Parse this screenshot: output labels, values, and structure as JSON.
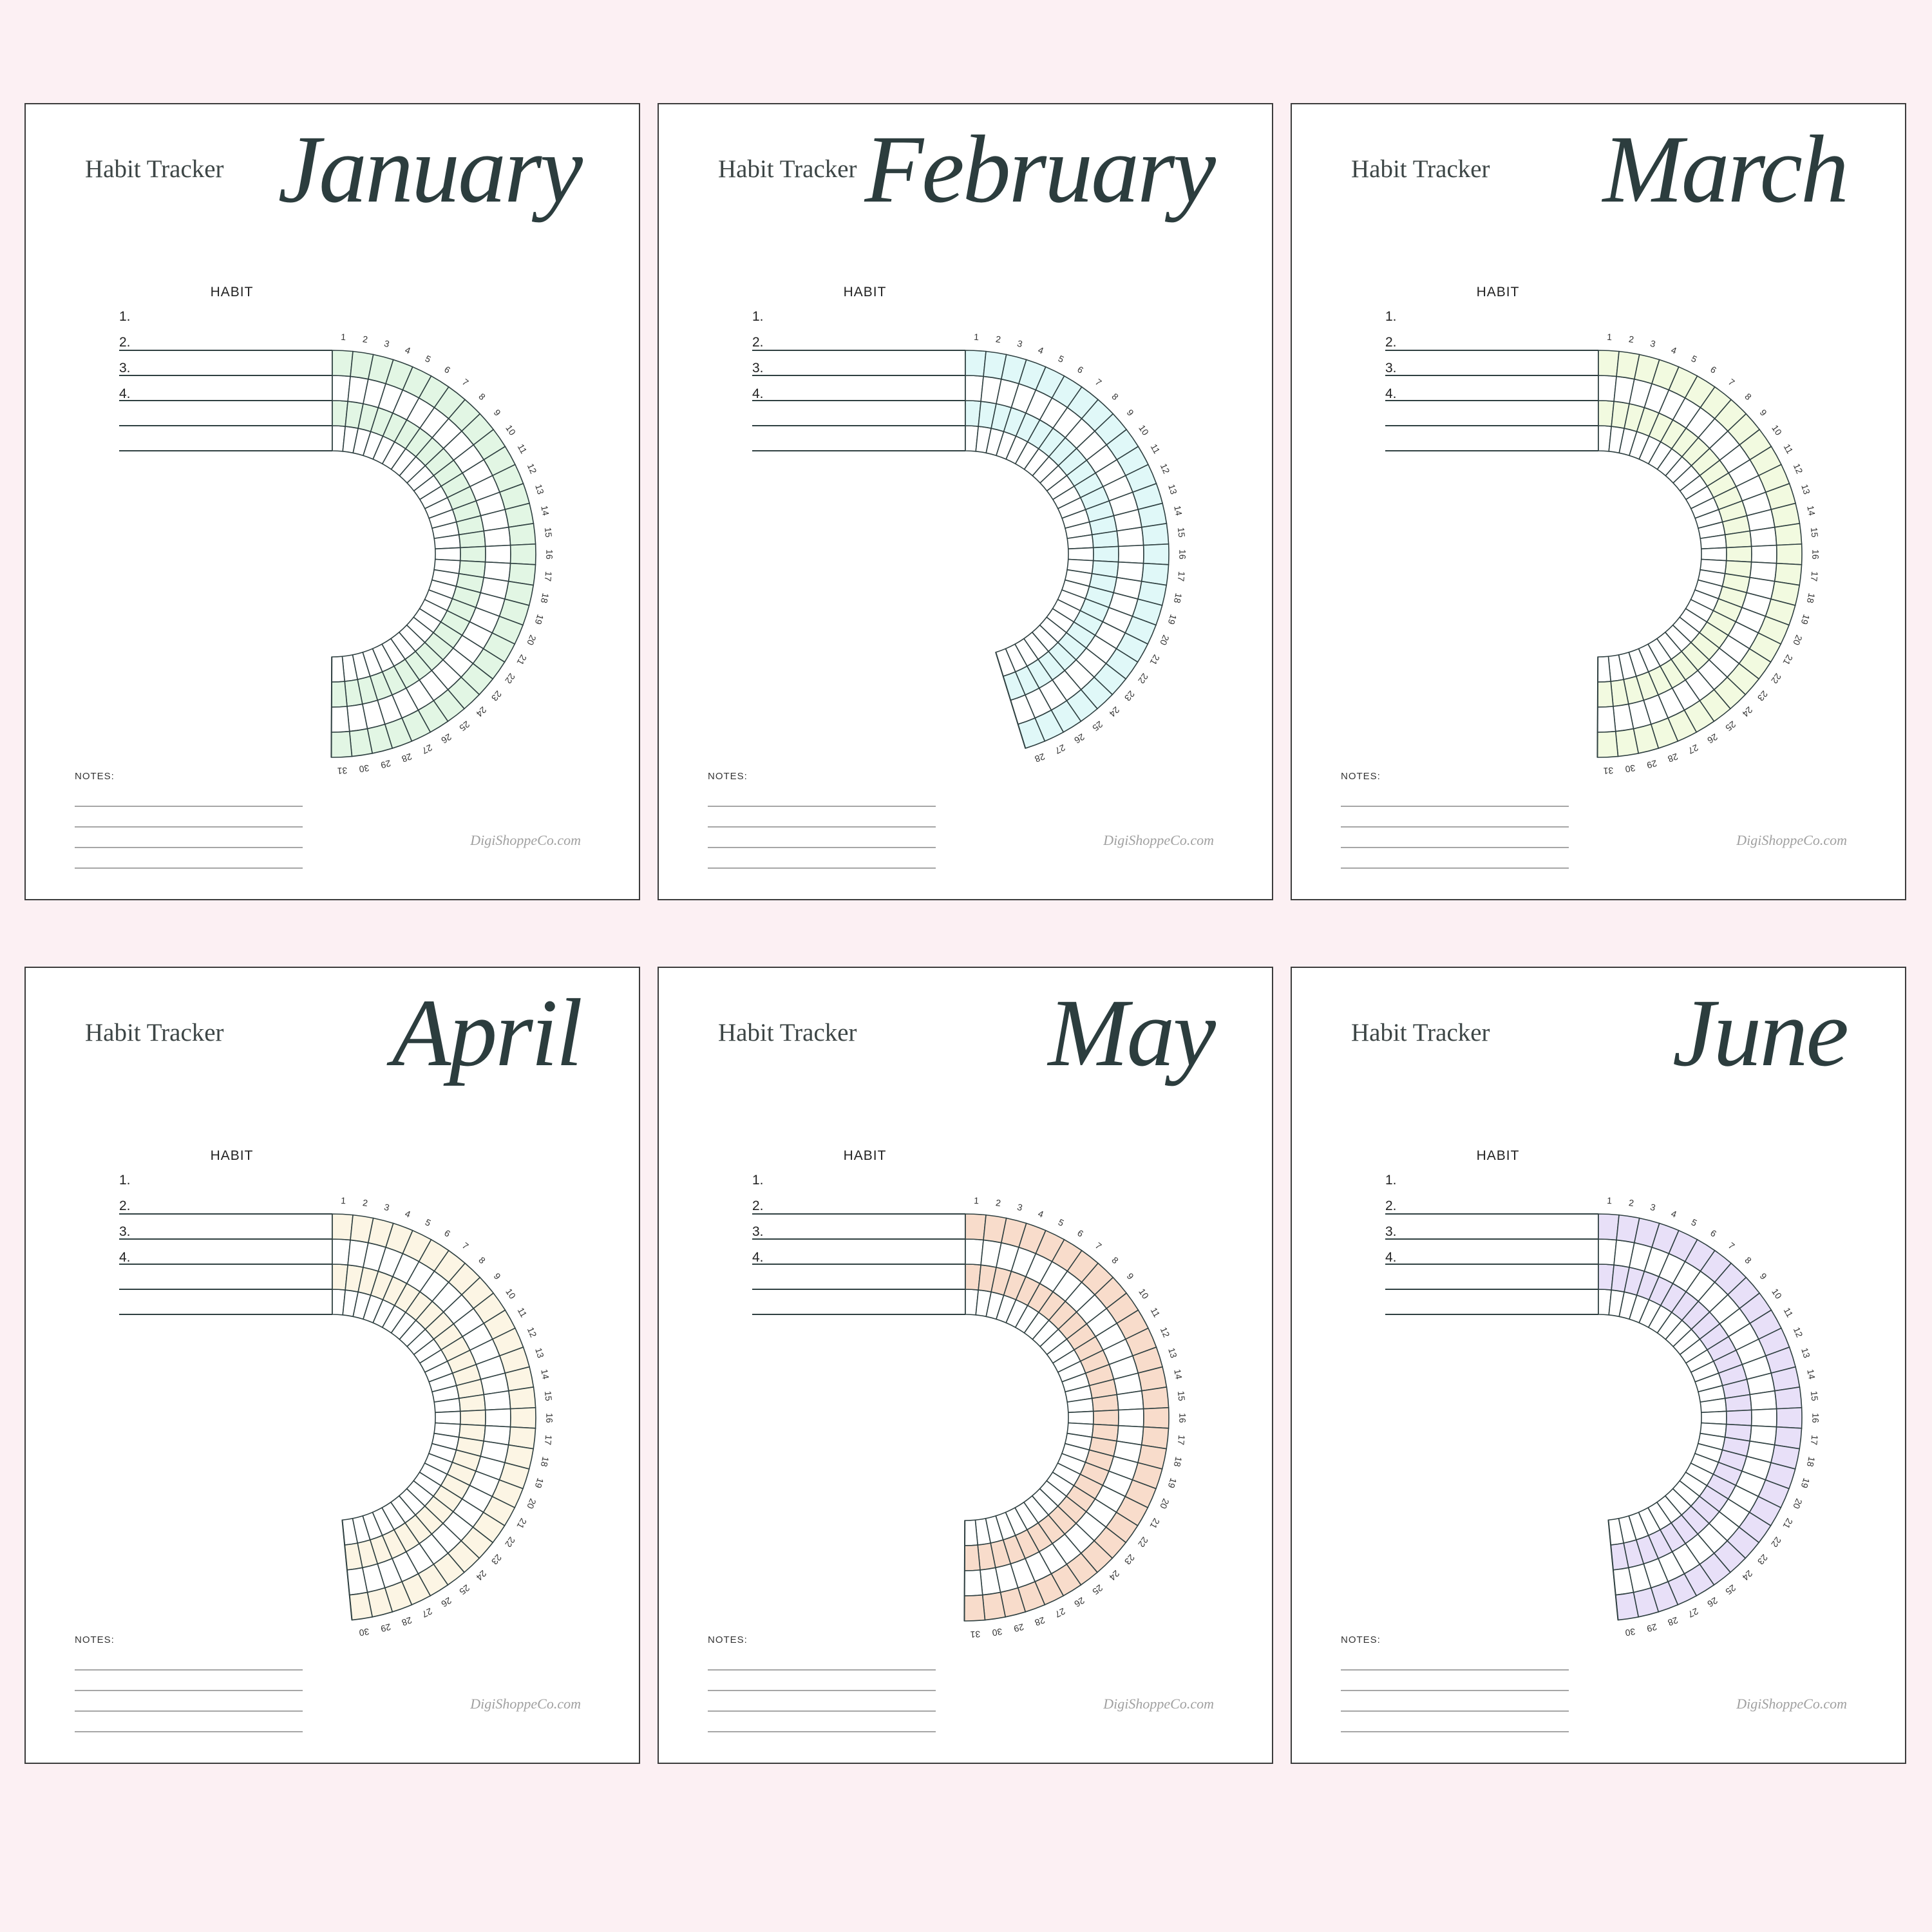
{
  "sheets": [
    {
      "title": "Habit Tracker",
      "month": "January",
      "days": 31,
      "accent": "#e2f6e4",
      "habit_header": "HABIT",
      "habits": [
        "1.",
        "2.",
        "3.",
        "4."
      ],
      "notes_label": "NOTES:",
      "watermark": "DigiShoppeCo.com"
    },
    {
      "title": "Habit Tracker",
      "month": "February",
      "days": 28,
      "accent": "#e0f8f8",
      "habit_header": "HABIT",
      "habits": [
        "1.",
        "2.",
        "3.",
        "4."
      ],
      "notes_label": "NOTES:",
      "watermark": "DigiShoppeCo.com"
    },
    {
      "title": "Habit Tracker",
      "month": "March",
      "days": 31,
      "accent": "#f2fae0",
      "habit_header": "HABIT",
      "habits": [
        "1.",
        "2.",
        "3.",
        "4."
      ],
      "notes_label": "NOTES:",
      "watermark": "DigiShoppeCo.com"
    },
    {
      "title": "Habit Tracker",
      "month": "April",
      "days": 30,
      "accent": "#fcf5e4",
      "habit_header": "HABIT",
      "habits": [
        "1.",
        "2.",
        "3.",
        "4."
      ],
      "notes_label": "NOTES:",
      "watermark": "DigiShoppeCo.com"
    },
    {
      "title": "Habit Tracker",
      "month": "May",
      "days": 31,
      "accent": "#f8dccb",
      "habit_header": "HABIT",
      "habits": [
        "1.",
        "2.",
        "3.",
        "4."
      ],
      "notes_label": "NOTES:",
      "watermark": "DigiShoppeCo.com"
    },
    {
      "title": "Habit Tracker",
      "month": "June",
      "days": 30,
      "accent": "#e8e0f8",
      "habit_header": "HABIT",
      "habits": [
        "1.",
        "2.",
        "3.",
        "4."
      ],
      "notes_label": "NOTES:",
      "watermark": "DigiShoppeCo.com"
    }
  ]
}
